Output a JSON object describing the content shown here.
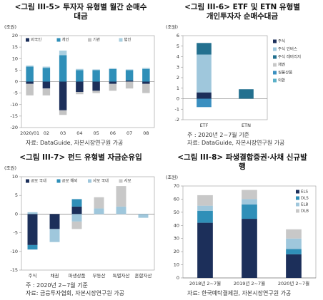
{
  "chart_data": [
    {
      "type": "bar",
      "stacked": true,
      "title": "<그림 III-5> 투자자 유형별 월간 순매수대금",
      "unit": "(조원)",
      "categories": [
        "2020/01",
        "02",
        "03",
        "04",
        "05",
        "06",
        "07",
        "08"
      ],
      "series": [
        {
          "name": "외국인",
          "color": "#1c2f5a",
          "values": [
            -1,
            -3,
            -12.5,
            -4.5,
            -4,
            -1,
            0.5,
            -1
          ]
        },
        {
          "name": "개인",
          "color": "#2f8fb8",
          "values": [
            6.5,
            6,
            11.5,
            5,
            5,
            5.5,
            4.5,
            5.5
          ]
        },
        {
          "name": "기관",
          "color": "#c4c4c4",
          "values": [
            -5,
            -3,
            -2,
            -1,
            -1,
            -3,
            -3,
            -4
          ]
        },
        {
          "name": "법인",
          "color": "#a9cfe0",
          "values": [
            0.5,
            0.5,
            2,
            0.5,
            0.3,
            0.3,
            0.3,
            0.5
          ]
        }
      ],
      "ylim": [
        -20,
        20
      ],
      "yticks": [
        -20,
        -15,
        -10,
        -5,
        0,
        5,
        10,
        15,
        20
      ],
      "legend": "top",
      "notes": [
        "자료: DataGuide, 자본시장연구원 가공"
      ]
    },
    {
      "type": "bar",
      "stacked": true,
      "title": "<그림 III-6> ETF 및 ETN 유형별 개인투자자 순매수대금",
      "unit": "(조원)",
      "categories": [
        "ETF",
        "ETN"
      ],
      "series": [
        {
          "name": "주식",
          "color": "#1c2f5a",
          "values": [
            0.6,
            0
          ]
        },
        {
          "name": "주식 인버스",
          "color": "#9fc7dc",
          "values": [
            3.6,
            0
          ]
        },
        {
          "name": "주식 레버리지",
          "color": "#23708f",
          "values": [
            1.1,
            0.9
          ]
        },
        {
          "name": "채권",
          "color": "#c8c8c8",
          "values": [
            0,
            0
          ]
        },
        {
          "name": "실물상품",
          "color": "#3a8fc0",
          "values": [
            -0.8,
            0
          ]
        },
        {
          "name": "외환",
          "color": "#5ab0c8",
          "values": [
            0,
            0
          ]
        }
      ],
      "ylim": [
        -2,
        6
      ],
      "yticks": [
        -2,
        -1,
        0,
        1,
        2,
        3,
        4,
        5,
        6
      ],
      "legend": "right",
      "notes": [
        "주 : 2020년 2~7월 기준",
        "자료: DataGuide, 자본시장연구원 가공"
      ]
    },
    {
      "type": "bar",
      "stacked": true,
      "title": "<그림 III-7> 펀드 유형별 자금순유입",
      "unit": "(조원)",
      "categories": [
        "주식",
        "채권",
        "파생상품",
        "부동산",
        "특별자산",
        "혼합자산"
      ],
      "series": [
        {
          "name": "공모 국내",
          "color": "#1c2f5a",
          "values": [
            -8.3,
            -4,
            2,
            0,
            0,
            0
          ]
        },
        {
          "name": "공모 해외",
          "color": "#2f8fb8",
          "values": [
            -1.2,
            0,
            2,
            0,
            0,
            0
          ]
        },
        {
          "name": "사모 국내",
          "color": "#9fc7dc",
          "values": [
            0.5,
            -3.5,
            -2,
            1.5,
            2,
            -1
          ]
        },
        {
          "name": "사모",
          "color": "#c8c8c8",
          "values": [
            0,
            0,
            -2,
            3,
            5.5,
            0
          ]
        }
      ],
      "ylim": [
        -15,
        10
      ],
      "yticks": [
        -15,
        -10,
        -5,
        0,
        5,
        10
      ],
      "legend": "top",
      "notes": [
        "주 : 2020년 2~7월 기준",
        "자료: 금융투자협회, 자본시장연구원 가공"
      ]
    },
    {
      "type": "bar",
      "stacked": true,
      "title": "<그림 III-8> 파생결합증권·사채 신규발행",
      "unit": "(조원)",
      "categories": [
        "2018년 2~7월",
        "2019년 2~7월",
        "2020년 2~7월"
      ],
      "series": [
        {
          "name": "ELS",
          "color": "#1c2f5a",
          "values": [
            42,
            45,
            18
          ]
        },
        {
          "name": "DLS",
          "color": "#2f8fb8",
          "values": [
            9,
            11,
            4
          ]
        },
        {
          "name": "ELB",
          "color": "#9fc7dc",
          "values": [
            4,
            4,
            8
          ]
        },
        {
          "name": "DLB",
          "color": "#c8c8c8",
          "values": [
            8,
            7,
            7
          ]
        }
      ],
      "ylim": [
        0,
        70
      ],
      "yticks": [
        0,
        10,
        20,
        30,
        40,
        50,
        60,
        70
      ],
      "legend": "right-top",
      "notes": [
        "자료: 한국예탁결제원, 자본시장연구원 가공"
      ]
    }
  ]
}
